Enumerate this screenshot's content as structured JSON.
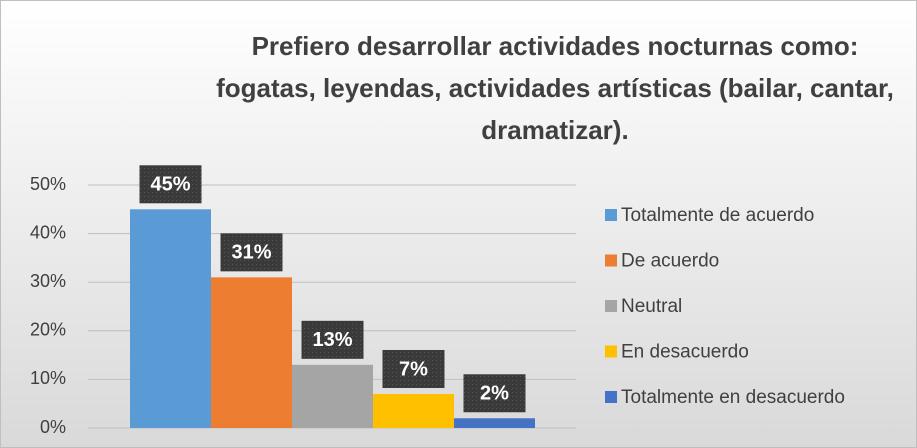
{
  "chart_data": {
    "type": "bar",
    "title": [
      "Prefiero desarrollar actividades nocturnas como:",
      "fogatas, leyendas, actividades artísticas (bailar, cantar,",
      "dramatizar)."
    ],
    "series": [
      {
        "name": "Totalmente de acuerdo",
        "color": "#5b9bd5",
        "values": [
          45
        ],
        "value_labels": [
          "45%"
        ]
      },
      {
        "name": "De acuerdo",
        "color": "#ed7d31",
        "values": [
          31
        ],
        "value_labels": [
          "31%"
        ]
      },
      {
        "name": "Neutral",
        "color": "#a5a5a5",
        "values": [
          13
        ],
        "value_labels": [
          "13%"
        ]
      },
      {
        "name": "En desacuerdo",
        "color": "#ffc000",
        "values": [
          7
        ],
        "value_labels": [
          "7%"
        ]
      },
      {
        "name": "Totalmente en desacuerdo",
        "color": "#4472c4",
        "values": [
          2
        ],
        "value_labels": [
          "2%"
        ]
      }
    ],
    "ylim": [
      0,
      50
    ],
    "yticks": [
      {
        "value": 0,
        "label": "0%"
      },
      {
        "value": 10,
        "label": "10%"
      },
      {
        "value": 20,
        "label": "20%"
      },
      {
        "value": 30,
        "label": "30%"
      },
      {
        "value": 40,
        "label": "40%"
      },
      {
        "value": 50,
        "label": "50%"
      }
    ],
    "grid": true,
    "legend": "right"
  }
}
